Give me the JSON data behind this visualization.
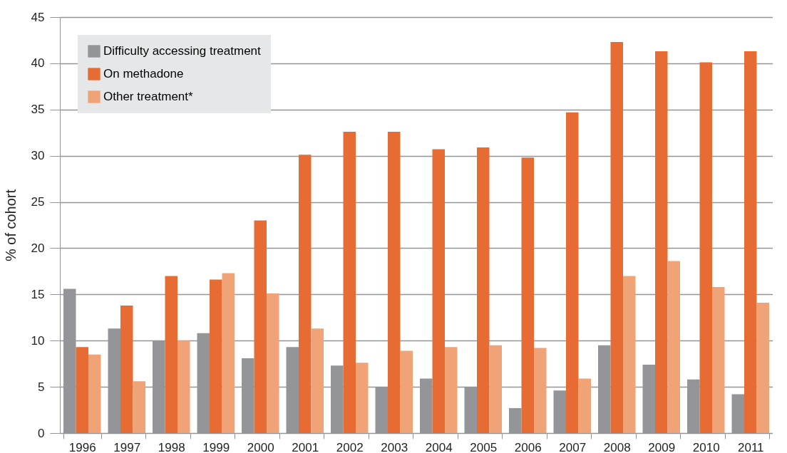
{
  "chart_data": {
    "type": "bar",
    "ylabel": "% of cohort",
    "categories": [
      "1996",
      "1997",
      "1998",
      "1999",
      "2000",
      "2001",
      "2002",
      "2003",
      "2004",
      "2005",
      "2006",
      "2007",
      "2008",
      "2009",
      "2010",
      "2011"
    ],
    "series": [
      {
        "name": "Difficulty accessing treatment",
        "color": "#939598",
        "values": [
          15.6,
          11.3,
          10.0,
          10.8,
          8.1,
          9.3,
          7.3,
          5.0,
          5.9,
          5.0,
          2.7,
          4.6,
          9.5,
          7.4,
          5.8,
          4.2
        ]
      },
      {
        "name": "On methadone",
        "color": "#e66c33",
        "values": [
          9.3,
          13.8,
          17.0,
          16.6,
          23.0,
          30.1,
          32.6,
          32.6,
          30.7,
          30.9,
          29.8,
          34.7,
          42.3,
          41.3,
          40.1,
          41.3
        ]
      },
      {
        "name": "Other treatment*",
        "color": "#f0a377",
        "values": [
          8.5,
          5.6,
          10.0,
          17.3,
          15.1,
          11.3,
          7.6,
          8.9,
          9.3,
          9.5,
          9.2,
          5.9,
          17.0,
          18.6,
          15.8,
          14.1
        ]
      }
    ],
    "ylim": [
      0,
      45
    ],
    "yticks": [
      0,
      5,
      10,
      15,
      20,
      25,
      30,
      35,
      40,
      45
    ],
    "grid": "y",
    "legend": "top left"
  }
}
